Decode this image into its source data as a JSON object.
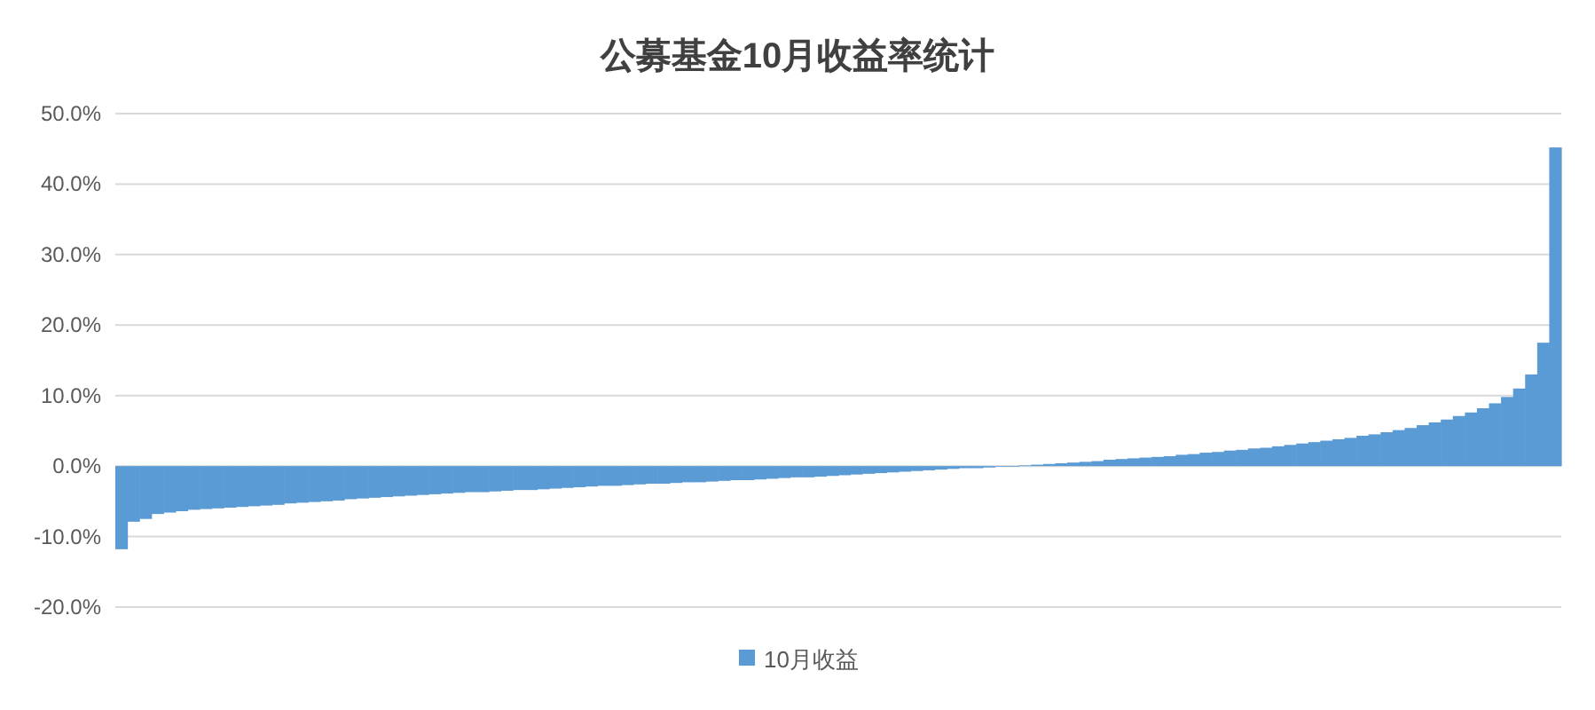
{
  "chart_data": {
    "type": "bar",
    "title": "公募基金10月收益率统计",
    "legend": "bottom",
    "grid": "y",
    "ylim": [
      -20,
      50
    ],
    "yticks": [
      {
        "value": -20,
        "label": "-20.0%"
      },
      {
        "value": -10,
        "label": "-10.0%"
      },
      {
        "value": 0,
        "label": "0.0%"
      },
      {
        "value": 10,
        "label": "10.0%"
      },
      {
        "value": 20,
        "label": "20.0%"
      },
      {
        "value": 30,
        "label": "30.0%"
      },
      {
        "value": 40,
        "label": "40.0%"
      },
      {
        "value": 50,
        "label": "50.0%"
      }
    ],
    "categories": [
      null,
      null,
      null,
      null,
      null,
      null,
      null,
      null,
      null,
      null,
      null,
      null,
      null,
      null,
      null,
      null,
      null,
      null,
      null,
      null,
      null,
      null,
      null,
      null,
      null,
      null,
      null,
      null,
      null,
      null,
      null,
      null,
      null,
      null,
      null,
      null,
      null,
      null,
      null,
      null,
      null,
      null,
      null,
      null,
      null,
      null,
      null,
      null,
      null,
      null,
      null,
      null,
      null,
      null,
      null,
      null,
      null,
      null,
      null,
      null,
      null,
      null,
      null,
      null,
      null,
      null,
      null,
      null,
      null,
      null,
      null,
      null,
      null,
      null,
      null,
      null,
      null,
      null,
      null,
      null,
      null,
      null,
      null,
      null,
      null,
      null,
      null,
      null,
      null,
      null,
      null,
      null,
      null,
      null,
      null,
      null,
      null,
      null,
      null,
      null,
      null,
      null,
      null,
      null,
      null,
      null,
      null,
      null,
      null,
      null,
      null,
      null,
      null,
      null,
      null,
      null,
      null,
      null,
      null,
      null
    ],
    "series": [
      {
        "name": "10月收益",
        "color": "#5b9bd5",
        "values": [
          -11.8,
          -7.9,
          -7.5,
          -6.8,
          -6.6,
          -6.4,
          -6.2,
          -6.1,
          -6.0,
          -5.9,
          -5.8,
          -5.7,
          -5.6,
          -5.5,
          -5.3,
          -5.2,
          -5.1,
          -5.0,
          -4.9,
          -4.7,
          -4.6,
          -4.5,
          -4.4,
          -4.3,
          -4.2,
          -4.1,
          -4.0,
          -3.9,
          -3.8,
          -3.7,
          -3.7,
          -3.6,
          -3.5,
          -3.4,
          -3.4,
          -3.3,
          -3.2,
          -3.1,
          -3.0,
          -2.9,
          -2.8,
          -2.8,
          -2.7,
          -2.6,
          -2.5,
          -2.5,
          -2.4,
          -2.3,
          -2.3,
          -2.2,
          -2.1,
          -2.0,
          -2.0,
          -1.9,
          -1.8,
          -1.7,
          -1.6,
          -1.6,
          -1.5,
          -1.4,
          -1.3,
          -1.2,
          -1.1,
          -1.0,
          -0.9,
          -0.8,
          -0.7,
          -0.6,
          -0.5,
          -0.4,
          -0.3,
          -0.3,
          -0.2,
          -0.1,
          -0.1,
          0.1,
          0.2,
          0.3,
          0.4,
          0.5,
          0.6,
          0.7,
          0.9,
          1.0,
          1.1,
          1.2,
          1.3,
          1.4,
          1.6,
          1.7,
          1.9,
          2.0,
          2.2,
          2.3,
          2.5,
          2.6,
          2.8,
          3.0,
          3.2,
          3.4,
          3.6,
          3.8,
          4.0,
          4.3,
          4.5,
          4.8,
          5.1,
          5.4,
          5.8,
          6.2,
          6.6,
          7.1,
          7.6,
          8.2,
          8.9,
          9.8,
          11.0,
          13.0,
          17.5,
          45.2
        ]
      }
    ]
  }
}
